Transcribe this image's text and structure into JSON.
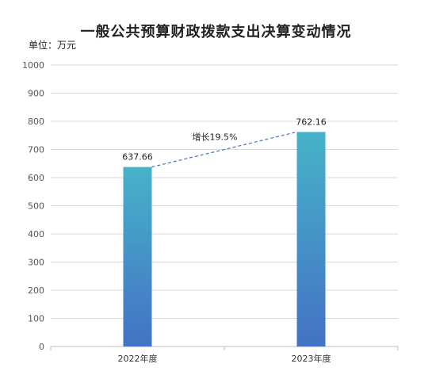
{
  "title": "一般公共预算财政拨款支出决算变动情况",
  "unit_label": "单位：万元",
  "colors": {
    "bar_top": "#46B3C9",
    "bar_bottom": "#4472C4",
    "trend_line": "#4472C4",
    "grid": "#D9D9D9"
  },
  "chart_data": {
    "type": "bar",
    "categories": [
      "2022年度",
      "2023年度"
    ],
    "values": [
      637.66,
      762.16
    ],
    "data_labels": [
      "637.66",
      "762.16"
    ],
    "ylim": [
      0,
      1000
    ],
    "yticks": [
      0,
      100,
      200,
      300,
      400,
      500,
      600,
      700,
      800,
      900,
      1000
    ],
    "grid": true,
    "annotation": "增长19.5%",
    "trend_line": "dashed"
  }
}
